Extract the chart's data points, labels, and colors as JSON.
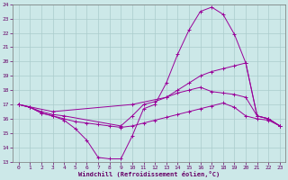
{
  "xlabel": "Windchill (Refroidissement éolien,°C)",
  "bg_color": "#cce8e8",
  "grid_color": "#aacccc",
  "line_color": "#990099",
  "xlim_min": -0.5,
  "xlim_max": 23.5,
  "ylim_min": 13,
  "ylim_max": 24,
  "yticks": [
    13,
    14,
    15,
    16,
    17,
    18,
    19,
    20,
    21,
    22,
    23,
    24
  ],
  "xticks": [
    0,
    1,
    2,
    3,
    4,
    5,
    6,
    7,
    8,
    9,
    10,
    11,
    12,
    13,
    14,
    15,
    16,
    17,
    18,
    19,
    20,
    21,
    22,
    23
  ],
  "lines": [
    {
      "x": [
        0,
        1,
        2,
        3,
        4,
        5,
        6,
        7,
        8,
        9,
        10,
        11,
        12,
        13,
        14,
        15,
        16,
        17,
        18,
        19,
        20,
        21,
        22,
        23
      ],
      "y": [
        17.0,
        16.8,
        16.4,
        16.2,
        15.9,
        15.3,
        14.5,
        13.3,
        13.2,
        13.2,
        14.8,
        16.7,
        17.0,
        18.5,
        20.5,
        22.2,
        23.5,
        23.8,
        23.3,
        21.9,
        19.9,
        16.2,
        16.0,
        15.5
      ]
    },
    {
      "x": [
        0,
        3,
        10,
        13,
        14,
        15,
        16,
        17,
        18,
        19,
        20,
        21,
        22,
        23
      ],
      "y": [
        17.0,
        16.5,
        17.0,
        17.5,
        18.0,
        18.5,
        19.0,
        19.3,
        19.5,
        19.7,
        19.9,
        16.2,
        16.0,
        15.5
      ]
    },
    {
      "x": [
        0,
        1,
        2,
        3,
        4,
        9,
        10,
        11,
        12,
        13,
        14,
        15,
        16,
        17,
        18,
        19,
        20,
        21,
        22,
        23
      ],
      "y": [
        17.0,
        16.8,
        16.5,
        16.3,
        16.2,
        15.5,
        16.2,
        17.0,
        17.2,
        17.5,
        17.8,
        18.0,
        18.2,
        17.9,
        17.8,
        17.7,
        17.5,
        16.2,
        16.0,
        15.5
      ]
    },
    {
      "x": [
        0,
        1,
        2,
        3,
        4,
        5,
        6,
        7,
        8,
        9,
        10,
        11,
        12,
        13,
        14,
        15,
        16,
        17,
        18,
        19,
        20,
        21,
        22,
        23
      ],
      "y": [
        17.0,
        16.8,
        16.4,
        16.2,
        16.0,
        15.8,
        15.7,
        15.6,
        15.5,
        15.4,
        15.5,
        15.7,
        15.9,
        16.1,
        16.3,
        16.5,
        16.7,
        16.9,
        17.1,
        16.8,
        16.2,
        16.0,
        15.9,
        15.5
      ]
    }
  ]
}
